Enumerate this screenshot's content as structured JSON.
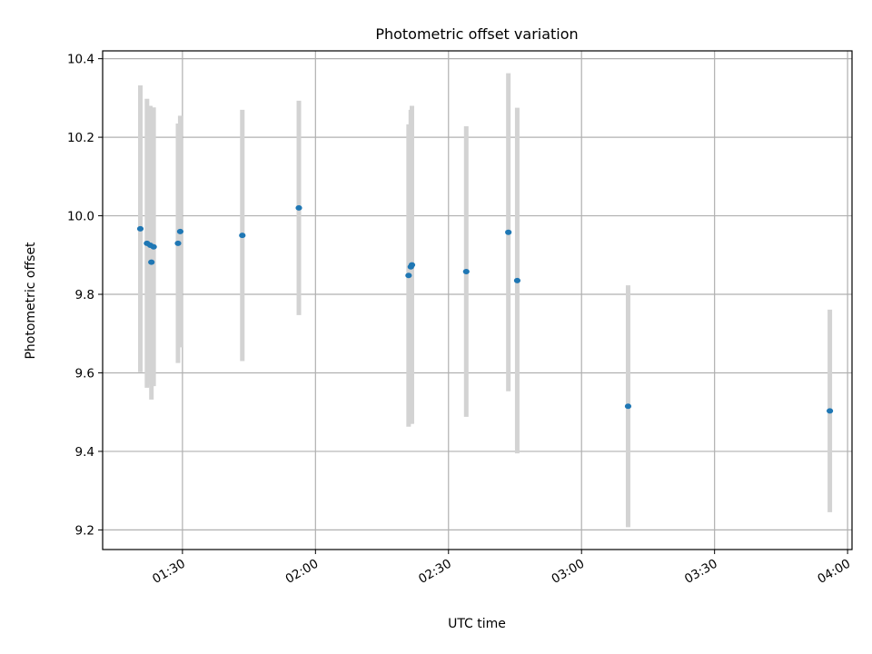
{
  "chart_data": {
    "type": "scatter",
    "title": "Photometric offset variation",
    "xlabel": "UTC time",
    "ylabel": "Photometric offset",
    "x_unit": "minutes after 01:00 UTC",
    "xlim": [
      "01:12",
      "04:01"
    ],
    "ylim": [
      9.15,
      10.42
    ],
    "x_ticks": [
      "01:30",
      "02:00",
      "02:30",
      "03:00",
      "03:30",
      "04:00"
    ],
    "y_ticks": [
      "9.2",
      "9.4",
      "9.6",
      "9.8",
      "10.0",
      "10.2",
      "10.4"
    ],
    "grid": true,
    "colors": {
      "point": "#1f77b4",
      "errorbar": "#d3d3d3"
    },
    "series": [
      {
        "points": [
          {
            "time": "01:20:30",
            "y": 9.967,
            "yerr": 0.365
          },
          {
            "time": "01:22:00",
            "y": 9.93,
            "yerr": 0.368
          },
          {
            "time": "01:22:45",
            "y": 9.925,
            "yerr": 0.355
          },
          {
            "time": "01:23:00",
            "y": 9.882,
            "yerr": 0.35
          },
          {
            "time": "01:23:30",
            "y": 9.921,
            "yerr": 0.355
          },
          {
            "time": "01:29:00",
            "y": 9.93,
            "yerr": 0.305
          },
          {
            "time": "01:29:30",
            "y": 9.96,
            "yerr": 0.295
          },
          {
            "time": "01:43:30",
            "y": 9.95,
            "yerr": 0.32
          },
          {
            "time": "01:56:15",
            "y": 10.02,
            "yerr": 0.273
          },
          {
            "time": "02:21:00",
            "y": 9.848,
            "yerr": 0.385
          },
          {
            "time": "02:21:30",
            "y": 9.87,
            "yerr": 0.4
          },
          {
            "time": "02:21:45",
            "y": 9.875,
            "yerr": 0.405
          },
          {
            "time": "02:34:00",
            "y": 9.858,
            "yerr": 0.37
          },
          {
            "time": "02:43:30",
            "y": 9.958,
            "yerr": 0.405
          },
          {
            "time": "02:45:30",
            "y": 9.835,
            "yerr": 0.44
          },
          {
            "time": "03:10:30",
            "y": 9.515,
            "yerr": 0.308
          },
          {
            "time": "03:56:00",
            "y": 9.503,
            "yerr": 0.258
          }
        ]
      }
    ]
  }
}
